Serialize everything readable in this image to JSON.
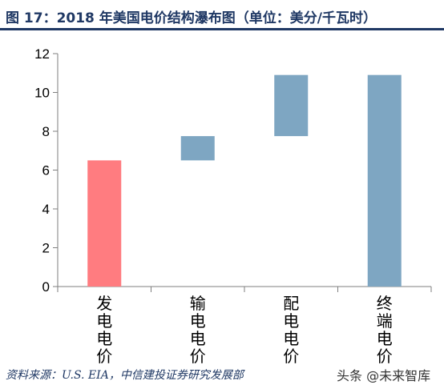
{
  "header": {
    "title": "图 17：2018 年美国电价结构瀑布图（单位：美分/千瓦时）"
  },
  "footer": {
    "source": "资料来源：U.S. EIA，中信建投证券研究发展部",
    "watermark": "头条 @未来智库"
  },
  "chart_data": {
    "type": "bar",
    "subtype": "waterfall",
    "categories": [
      "发电电价",
      "输电电价",
      "配电电价",
      "终端电价"
    ],
    "bars": [
      {
        "category": "发电电价",
        "base": 0,
        "top": 6.5,
        "color": "#ff7c80"
      },
      {
        "category": "输电电价",
        "base": 6.5,
        "top": 7.75,
        "color": "#7ea6c2"
      },
      {
        "category": "配电电价",
        "base": 7.75,
        "top": 10.9,
        "color": "#7ea6c2"
      },
      {
        "category": "终端电价",
        "base": 0,
        "top": 10.9,
        "color": "#7ea6c2"
      }
    ],
    "ylim": [
      0,
      12
    ],
    "yticks": [
      0,
      2,
      4,
      6,
      8,
      10,
      12
    ],
    "grid": false,
    "legend": "none"
  }
}
